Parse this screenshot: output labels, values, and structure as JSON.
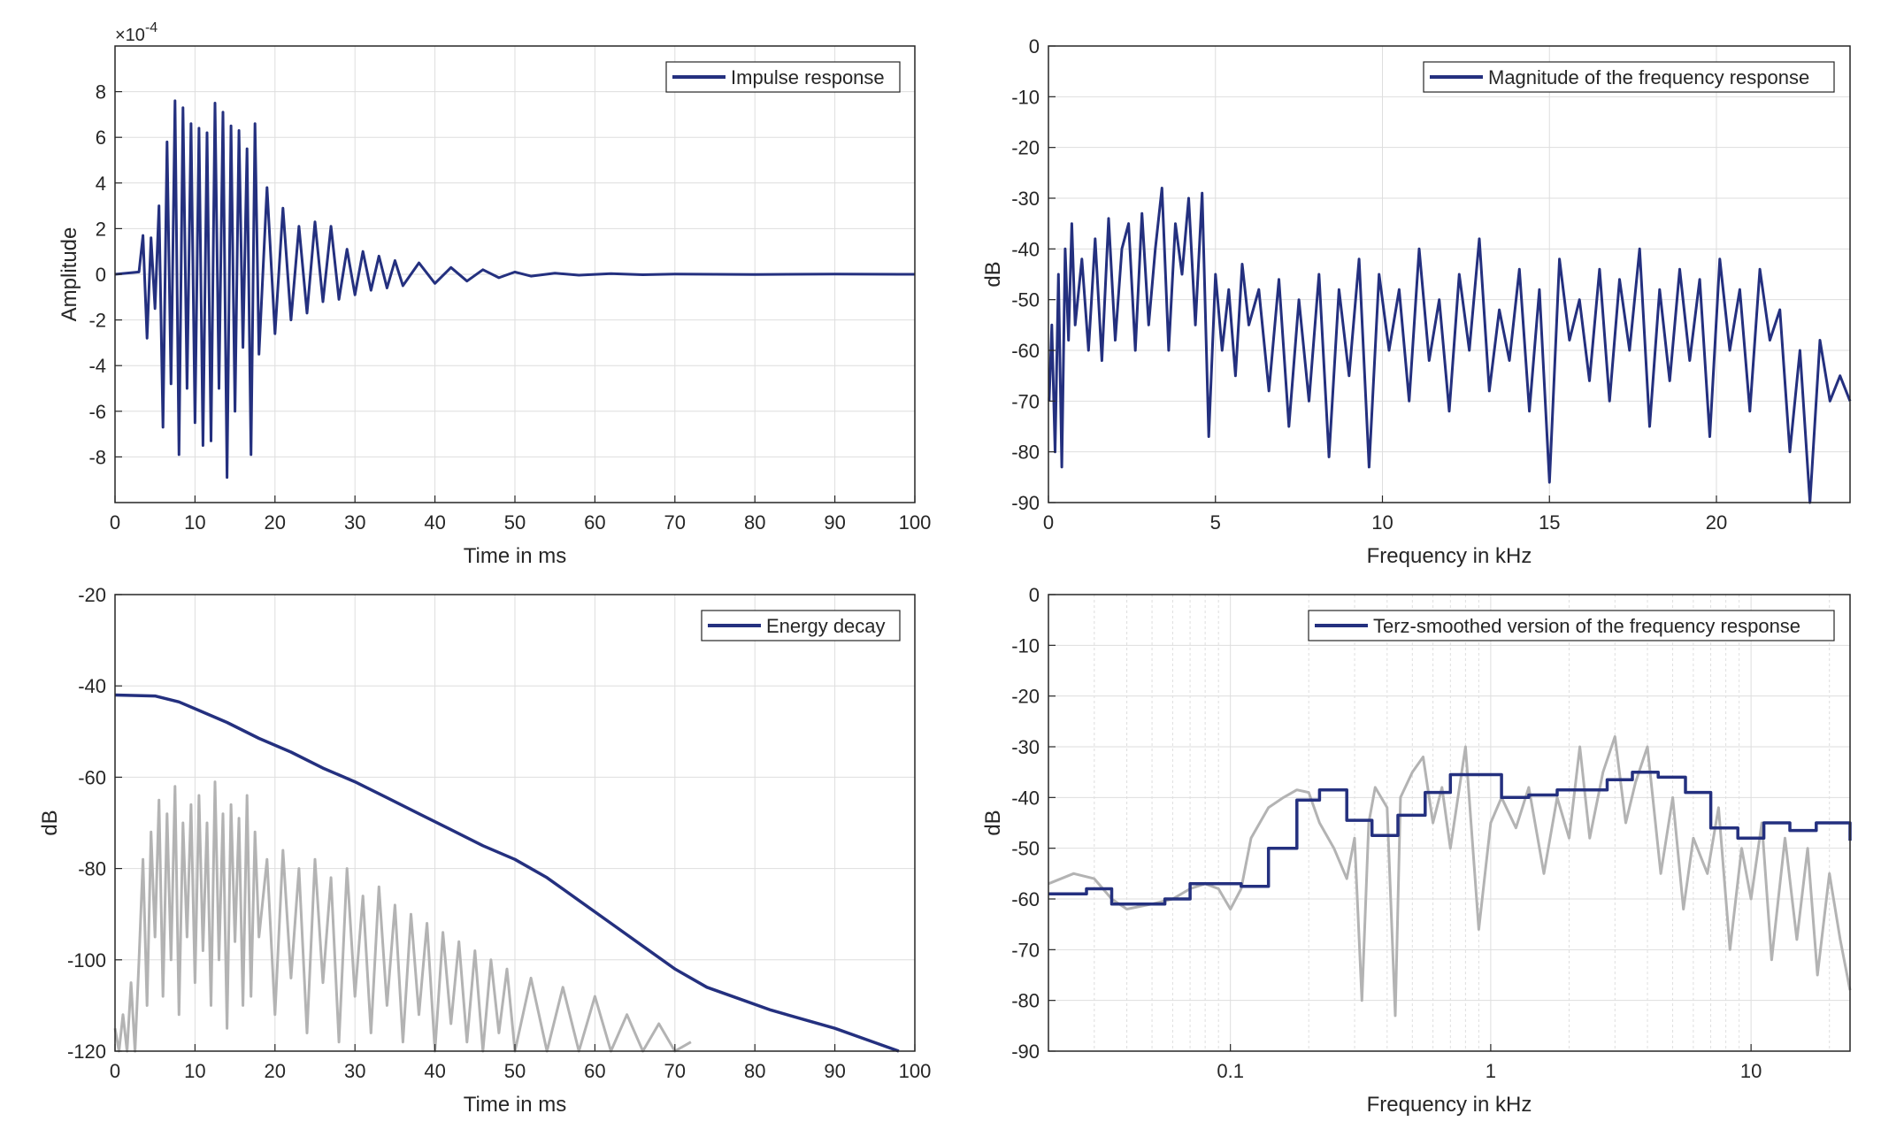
{
  "colors": {
    "primary": "#24307f",
    "secondary": "#b3b3b3",
    "grid": "#dedede",
    "axis": "#262626"
  },
  "chart_data": [
    {
      "id": "impulse",
      "type": "line",
      "title": "",
      "xlabel": "Time in ms",
      "ylabel": "Amplitude",
      "exponent_label": "×10",
      "exponent_power": "-4",
      "xlim": [
        0,
        100
      ],
      "ylim": [
        -10,
        10
      ],
      "xticks": [
        0,
        10,
        20,
        30,
        40,
        50,
        60,
        70,
        80,
        90,
        100
      ],
      "xtick_labels": [
        "0",
        "10",
        "20",
        "30",
        "40",
        "50",
        "60",
        "70",
        "80",
        "90",
        "100"
      ],
      "yticks": [
        -8,
        -6,
        -4,
        -2,
        0,
        2,
        4,
        6,
        8
      ],
      "ytick_labels": [
        "-8",
        "-6",
        "-4",
        "-2",
        "0",
        "2",
        "4",
        "6",
        "8"
      ],
      "grid": true,
      "legend": {
        "position": "top-right",
        "entries": [
          "Impulse response"
        ]
      },
      "series": [
        {
          "name": "Impulse response",
          "color": "#24307f",
          "x": [
            0,
            3,
            3.5,
            4,
            4.5,
            5,
            5.5,
            6,
            6.5,
            7,
            7.5,
            8,
            8.5,
            9,
            9.5,
            10,
            10.5,
            11,
            11.5,
            12,
            12.5,
            13,
            13.5,
            14,
            14.5,
            15,
            15.5,
            16,
            16.5,
            17,
            17.5,
            18,
            19,
            20,
            21,
            22,
            23,
            24,
            25,
            26,
            27,
            28,
            29,
            30,
            31,
            32,
            33,
            34,
            35,
            36,
            38,
            40,
            42,
            44,
            46,
            48,
            50,
            52,
            55,
            58,
            62,
            66,
            70,
            80,
            90,
            100
          ],
          "y": [
            0,
            0.1,
            1.7,
            -2.8,
            1.6,
            -1.5,
            3.0,
            -6.7,
            5.8,
            -4.8,
            7.6,
            -7.9,
            7.3,
            -5.0,
            6.6,
            -6.5,
            6.4,
            -7.5,
            6.2,
            -7.3,
            7.5,
            -5.0,
            7.1,
            -8.9,
            6.5,
            -6.0,
            6.3,
            -3.2,
            5.5,
            -7.9,
            6.6,
            -3.5,
            3.8,
            -2.6,
            2.9,
            -2.0,
            2.1,
            -1.7,
            2.3,
            -1.2,
            2.1,
            -1.1,
            1.1,
            -0.9,
            1.0,
            -0.7,
            0.8,
            -0.6,
            0.6,
            -0.5,
            0.5,
            -0.4,
            0.3,
            -0.3,
            0.2,
            -0.15,
            0.1,
            -0.08,
            0.05,
            -0.04,
            0.03,
            -0.02,
            0.01,
            -0.01,
            0.01,
            0
          ]
        }
      ]
    },
    {
      "id": "magnitude",
      "type": "line",
      "title": "",
      "xlabel": "Frequency in kHz",
      "ylabel": "dB",
      "xlim": [
        0,
        24
      ],
      "ylim": [
        -90,
        0
      ],
      "xticks": [
        0,
        5,
        10,
        15,
        20
      ],
      "xtick_labels": [
        "0",
        "5",
        "10",
        "15",
        "20"
      ],
      "yticks": [
        0,
        -10,
        -20,
        -30,
        -40,
        -50,
        -60,
        -70,
        -80,
        -90
      ],
      "ytick_labels": [
        "0",
        "-10",
        "-20",
        "-30",
        "-40",
        "-50",
        "-60",
        "-70",
        "-80",
        "-90"
      ],
      "grid": true,
      "legend": {
        "position": "top-right",
        "entries": [
          "Magnitude of the frequency response"
        ]
      },
      "series": [
        {
          "name": "Magnitude of the frequency response",
          "color": "#24307f",
          "x": [
            0.02,
            0.1,
            0.2,
            0.3,
            0.4,
            0.5,
            0.6,
            0.7,
            0.8,
            1.0,
            1.2,
            1.4,
            1.6,
            1.8,
            2.0,
            2.2,
            2.4,
            2.6,
            2.8,
            3.0,
            3.2,
            3.4,
            3.6,
            3.8,
            4.0,
            4.2,
            4.4,
            4.6,
            4.8,
            5.0,
            5.2,
            5.4,
            5.6,
            5.8,
            6.0,
            6.3,
            6.6,
            6.9,
            7.2,
            7.5,
            7.8,
            8.1,
            8.4,
            8.7,
            9.0,
            9.3,
            9.6,
            9.9,
            10.2,
            10.5,
            10.8,
            11.1,
            11.4,
            11.7,
            12.0,
            12.3,
            12.6,
            12.9,
            13.2,
            13.5,
            13.8,
            14.1,
            14.4,
            14.7,
            15.0,
            15.3,
            15.6,
            15.9,
            16.2,
            16.5,
            16.8,
            17.1,
            17.4,
            17.7,
            18.0,
            18.3,
            18.6,
            18.9,
            19.2,
            19.5,
            19.8,
            20.1,
            20.4,
            20.7,
            21.0,
            21.3,
            21.6,
            21.9,
            22.2,
            22.5,
            22.8,
            23.1,
            23.4,
            23.7,
            24.0
          ],
          "y": [
            -70,
            -55,
            -80,
            -45,
            -83,
            -40,
            -58,
            -35,
            -55,
            -42,
            -60,
            -38,
            -62,
            -34,
            -58,
            -40,
            -35,
            -60,
            -33,
            -55,
            -40,
            -28,
            -60,
            -35,
            -45,
            -30,
            -55,
            -29,
            -77,
            -45,
            -60,
            -48,
            -65,
            -43,
            -55,
            -48,
            -68,
            -46,
            -75,
            -50,
            -70,
            -45,
            -81,
            -48,
            -65,
            -42,
            -83,
            -45,
            -60,
            -48,
            -70,
            -40,
            -62,
            -50,
            -72,
            -45,
            -60,
            -38,
            -68,
            -52,
            -62,
            -44,
            -72,
            -48,
            -86,
            -42,
            -58,
            -50,
            -66,
            -44,
            -70,
            -46,
            -60,
            -40,
            -75,
            -48,
            -66,
            -44,
            -62,
            -46,
            -77,
            -42,
            -60,
            -48,
            -72,
            -44,
            -58,
            -52,
            -80,
            -60,
            -92,
            -58,
            -70,
            -65,
            -70
          ]
        }
      ]
    },
    {
      "id": "energy",
      "type": "line",
      "title": "",
      "xlabel": "Time in ms",
      "ylabel": "dB",
      "xlim": [
        0,
        100
      ],
      "ylim": [
        -120,
        -20
      ],
      "xticks": [
        0,
        10,
        20,
        30,
        40,
        50,
        60,
        70,
        80,
        90,
        100
      ],
      "xtick_labels": [
        "0",
        "10",
        "20",
        "30",
        "40",
        "50",
        "60",
        "70",
        "80",
        "90",
        "100"
      ],
      "yticks": [
        -20,
        -40,
        -60,
        -80,
        -100,
        -120
      ],
      "ytick_labels": [
        "-20",
        "-40",
        "-60",
        "-80",
        "-100",
        "-120"
      ],
      "grid": true,
      "legend": {
        "position": "top-right",
        "entries": [
          "Energy decay"
        ]
      },
      "series": [
        {
          "name": "Energy decay",
          "color": "#24307f",
          "x": [
            0,
            5,
            8,
            10,
            14,
            18,
            22,
            26,
            30,
            34,
            38,
            42,
            46,
            50,
            54,
            58,
            62,
            66,
            70,
            74,
            78,
            82,
            86,
            90,
            94,
            98
          ],
          "y": [
            -42,
            -42.2,
            -43.5,
            -45,
            -48,
            -51.5,
            -54.5,
            -58,
            -61,
            -64.5,
            -68,
            -71.5,
            -75,
            -78,
            -82,
            -87,
            -92,
            -97,
            -102,
            -106,
            -108.5,
            -111,
            -113,
            -115,
            -117.5,
            -120
          ]
        },
        {
          "name": "",
          "color": "#b3b3b3",
          "x": [
            0,
            0.5,
            1,
            1.5,
            2,
            2.5,
            3,
            3.5,
            4,
            4.5,
            5,
            5.5,
            6,
            6.5,
            7,
            7.5,
            8,
            8.5,
            9,
            9.5,
            10,
            10.5,
            11,
            11.5,
            12,
            12.5,
            13,
            13.5,
            14,
            14.5,
            15,
            15.5,
            16,
            16.5,
            17,
            17.5,
            18,
            19,
            20,
            21,
            22,
            23,
            24,
            25,
            26,
            27,
            28,
            29,
            30,
            31,
            32,
            33,
            34,
            35,
            36,
            37,
            38,
            39,
            40,
            41,
            42,
            43,
            44,
            45,
            46,
            47,
            48,
            49,
            50,
            52,
            54,
            56,
            58,
            60,
            62,
            64,
            66,
            68,
            70,
            72
          ],
          "y": [
            -115,
            -120,
            -112,
            -120,
            -105,
            -120,
            -100,
            -78,
            -110,
            -72,
            -95,
            -65,
            -108,
            -68,
            -100,
            -62,
            -112,
            -70,
            -95,
            -66,
            -105,
            -64,
            -98,
            -70,
            -110,
            -61,
            -100,
            -68,
            -115,
            -66,
            -96,
            -69,
            -110,
            -64,
            -108,
            -72,
            -95,
            -78,
            -112,
            -76,
            -104,
            -80,
            -116,
            -78,
            -105,
            -82,
            -118,
            -80,
            -108,
            -86,
            -116,
            -84,
            -110,
            -88,
            -118,
            -90,
            -112,
            -92,
            -120,
            -94,
            -114,
            -96,
            -118,
            -98,
            -120,
            -100,
            -116,
            -102,
            -120,
            -104,
            -120,
            -106,
            -120,
            -108,
            -120,
            -112,
            -120,
            -114,
            -120,
            -118
          ]
        }
      ]
    },
    {
      "id": "terz",
      "type": "line",
      "title": "",
      "xlabel": "Frequency in kHz",
      "ylabel": "dB",
      "xscale": "log",
      "xlim": [
        0.02,
        24
      ],
      "ylim": [
        -90,
        0
      ],
      "xticks": [
        0.1,
        1,
        10
      ],
      "xtick_labels": [
        "0.1",
        "1",
        "10"
      ],
      "yticks": [
        0,
        -10,
        -20,
        -30,
        -40,
        -50,
        -60,
        -70,
        -80,
        -90
      ],
      "ytick_labels": [
        "0",
        "-10",
        "-20",
        "-30",
        "-40",
        "-50",
        "-60",
        "-70",
        "-80",
        "-90"
      ],
      "grid": true,
      "legend": {
        "position": "top-right",
        "entries": [
          "Terz-smoothed version of the frequency response"
        ]
      },
      "series": [
        {
          "name": "Terz-smoothed version of the frequency response",
          "color": "#24307f",
          "step": true,
          "x": [
            0.02,
            0.028,
            0.035,
            0.056,
            0.07,
            0.11,
            0.14,
            0.18,
            0.22,
            0.28,
            0.35,
            0.44,
            0.56,
            0.7,
            1.1,
            1.4,
            1.8,
            2.2,
            2.8,
            3.5,
            4.4,
            5.6,
            7.0,
            8.9,
            11.2,
            14.1,
            17.8,
            24
          ],
          "y": [
            -59,
            -58,
            -61,
            -60,
            -57,
            -57.5,
            -50,
            -40.5,
            -38.5,
            -44.5,
            -47.5,
            -43.5,
            -39,
            -35.5,
            -40,
            -39.5,
            -38.5,
            -38.5,
            -36.5,
            -35,
            -36,
            -39,
            -46,
            -48,
            -45,
            -46.5,
            -45,
            -48.5
          ]
        },
        {
          "name": "",
          "color": "#b3b3b3",
          "x": [
            0.02,
            0.025,
            0.03,
            0.035,
            0.04,
            0.05,
            0.06,
            0.07,
            0.08,
            0.09,
            0.1,
            0.11,
            0.12,
            0.14,
            0.16,
            0.18,
            0.2,
            0.22,
            0.25,
            0.28,
            0.3,
            0.32,
            0.34,
            0.36,
            0.4,
            0.43,
            0.45,
            0.5,
            0.55,
            0.6,
            0.65,
            0.7,
            0.8,
            0.9,
            1.0,
            1.1,
            1.25,
            1.4,
            1.6,
            1.8,
            2.0,
            2.2,
            2.4,
            2.7,
            3.0,
            3.3,
            3.6,
            4.0,
            4.5,
            5.0,
            5.5,
            6.0,
            6.8,
            7.5,
            8.3,
            9.2,
            10,
            11,
            12,
            13.5,
            15,
            16.5,
            18,
            20,
            22,
            24
          ],
          "y": [
            -57,
            -55,
            -56,
            -60,
            -62,
            -61,
            -60,
            -58,
            -57,
            -58,
            -62,
            -58,
            -48,
            -42,
            -40,
            -38.5,
            -39,
            -45,
            -50,
            -56,
            -48,
            -80,
            -45,
            -38,
            -42,
            -83,
            -40,
            -35,
            -32,
            -45,
            -38,
            -50,
            -30,
            -66,
            -45,
            -40,
            -46,
            -38,
            -55,
            -40,
            -48,
            -30,
            -48,
            -35,
            -28,
            -45,
            -37,
            -30,
            -55,
            -40,
            -62,
            -48,
            -55,
            -42,
            -70,
            -50,
            -60,
            -45,
            -72,
            -48,
            -68,
            -50,
            -75,
            -55,
            -68,
            -78
          ]
        }
      ]
    }
  ]
}
